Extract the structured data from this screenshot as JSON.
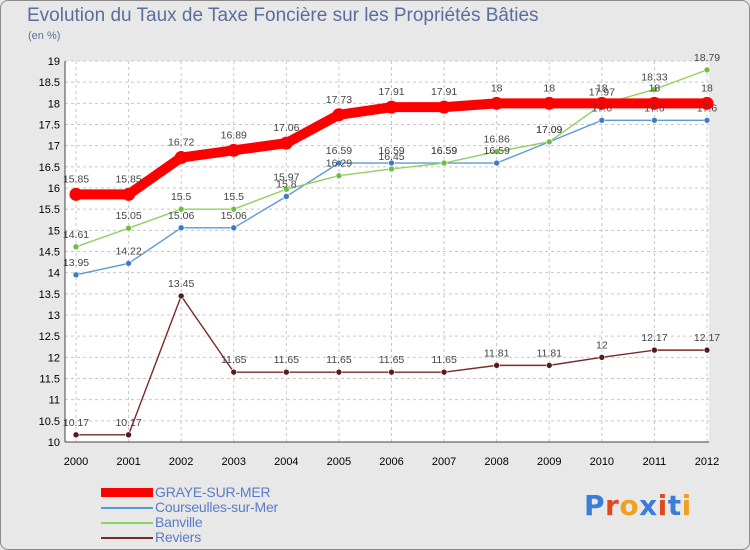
{
  "title": "Evolution du Taux de Taxe Foncière sur les Propriétés Bâties",
  "subtitle": "(en %)",
  "brand": {
    "text": "Proxiti",
    "letter_colors": [
      "#3b7dd8",
      "#e04a1a",
      "#f0a020",
      "#3b7dd8",
      "#e04a1a",
      "#3b7dd8",
      "#f0a020"
    ]
  },
  "chart_data": {
    "type": "line",
    "title": "Evolution du Taux de Taxe Foncière sur les Propriétés Bâties",
    "ylabel": "(en %)",
    "xlabel": "",
    "x": [
      "2000",
      "2001",
      "2002",
      "2003",
      "2004",
      "2005",
      "2006",
      "2007",
      "2008",
      "2009",
      "2010",
      "2011",
      "2012"
    ],
    "ylim": [
      10,
      19
    ],
    "yticks": [
      "10",
      "10.5",
      "11",
      "11.5",
      "12",
      "12.5",
      "13",
      "13.5",
      "14",
      "14.5",
      "15",
      "15.5",
      "16",
      "16.5",
      "17",
      "17.5",
      "18",
      "18.5",
      "19"
    ],
    "grid": true,
    "legend_position": "bottom-left",
    "series": [
      {
        "name": "GRAYE-SUR-MER",
        "color": "#ff0000",
        "bold": true,
        "values": [
          15.85,
          15.85,
          16.72,
          16.89,
          17.06,
          17.73,
          17.91,
          17.91,
          18,
          18,
          18,
          18,
          18
        ],
        "labels": [
          "15.85",
          "15.85",
          "16.72",
          "16.89",
          "17.06",
          "17.73",
          "17.91",
          "17.91",
          "18",
          "18",
          "18",
          "18",
          "18"
        ]
      },
      {
        "name": "Courseulles-sur-Mer",
        "color": "#5b9bd5",
        "marker_color": "#3a7cc8",
        "values": [
          13.95,
          14.22,
          15.06,
          15.06,
          15.8,
          16.59,
          16.59,
          16.59,
          16.59,
          17.09,
          17.6,
          17.6,
          17.6
        ],
        "labels": [
          "13.95",
          "14.22",
          "15.06",
          "15.06",
          "15.8",
          "16.59",
          "16.59",
          "16.59",
          "16.59",
          "17.09",
          "17.6",
          "17.6",
          "17.6"
        ]
      },
      {
        "name": "Banville",
        "color": "#90d060",
        "marker_color": "#6cc040",
        "values": [
          14.61,
          15.05,
          15.5,
          15.5,
          15.97,
          16.29,
          16.45,
          16.59,
          16.86,
          17.09,
          17.97,
          18.33,
          18.79
        ],
        "labels": [
          "14.61",
          "15.05",
          "15.5",
          "15.5",
          "15.97",
          "16.29",
          "16.45",
          "16.59",
          "16.86",
          "17.09",
          "17.97",
          "18.33",
          "18.79"
        ]
      },
      {
        "name": "Reviers",
        "color": "#7a2a2a",
        "marker_color": "#5a1a1a",
        "values": [
          10.17,
          10.17,
          13.45,
          11.65,
          11.65,
          11.65,
          11.65,
          11.65,
          11.81,
          11.81,
          12,
          12.17,
          12.17
        ],
        "labels": [
          "10.17",
          "10.17",
          "13.45",
          "11.65",
          "11.65",
          "11.65",
          "11.65",
          "11.65",
          "11.81",
          "11.81",
          "12",
          "12.17",
          "12.17"
        ]
      }
    ]
  }
}
